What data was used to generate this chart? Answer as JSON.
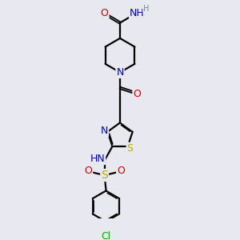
{
  "bg_color": "#e8e8f0",
  "atom_colors": {
    "C": "#000000",
    "N": "#0000cc",
    "O": "#cc0000",
    "S": "#bbaa00",
    "Cl": "#00aa00",
    "H": "#778899"
  },
  "bond_color": "#000000",
  "figsize": [
    3.0,
    3.0
  ],
  "dpi": 100
}
